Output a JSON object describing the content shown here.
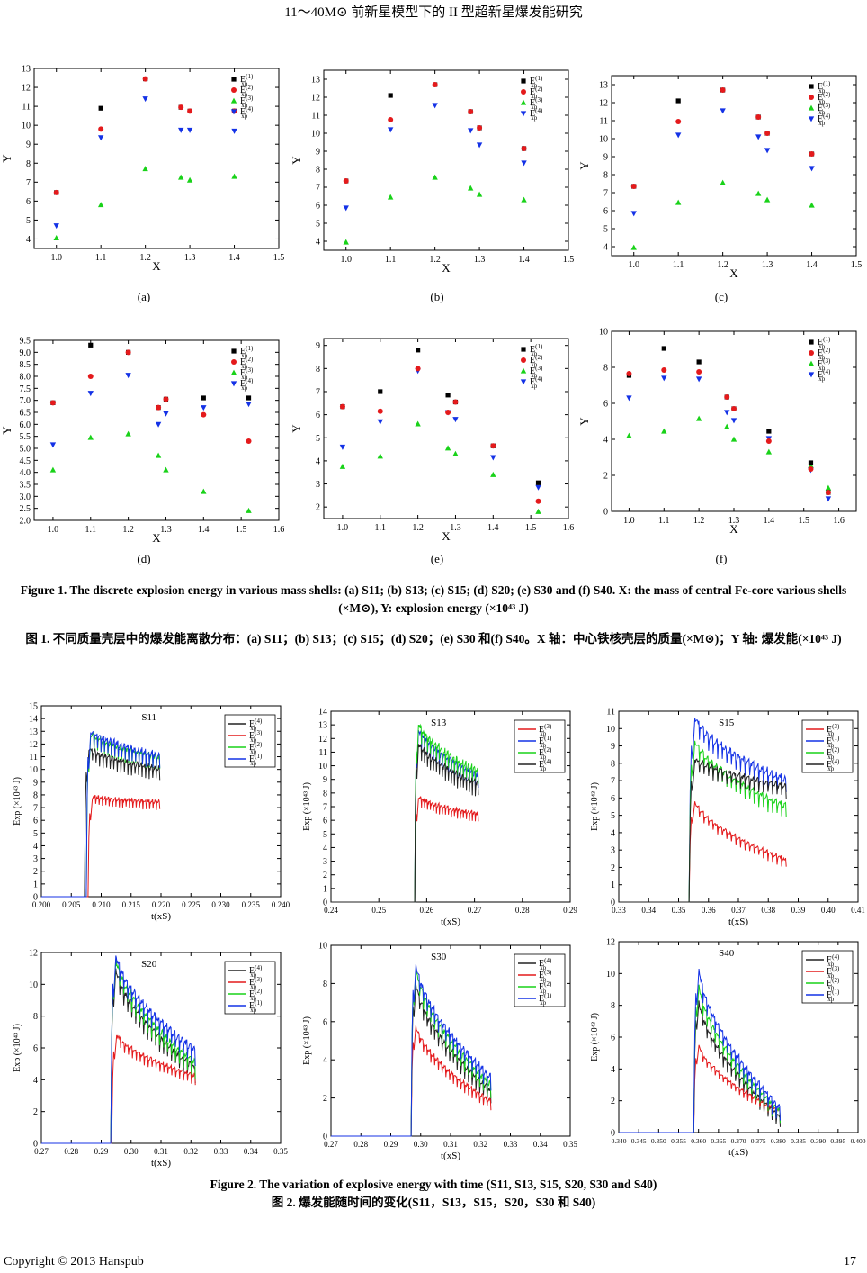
{
  "header": {
    "title": "11～40M⊙ 前新星模型下的 II 型超新星爆发能研究"
  },
  "figure1": {
    "sublabels": [
      "(a)",
      "(b)",
      "(c)",
      "(d)",
      "(e)",
      "(f)"
    ],
    "xlabel": "X",
    "ylabel": "Y",
    "legend": [
      "E(1)xp",
      "E(2)xp",
      "E(3)xp",
      "E(4)xp"
    ],
    "colors": [
      "#000000",
      "#e41a1c",
      "#19d219",
      "#1432e6"
    ],
    "caption_en": "Figure 1. The discrete explosion energy in various mass shells: (a) S11; (b) S13; (c) S15; (d) S20; (e) S30 and (f) S40. X: the mass of central Fe-core various shells (×M⊙), Y: explosion energy (×10⁴³ J)",
    "caption_zh": "图 1. 不同质量壳层中的爆发能离散分布：(a) S11；(b) S13；(c) S15；(d) S20；(e) S30 和(f) S40。X 轴：中心铁核壳层的质量(×M⊙)；Y 轴: 爆发能(×10⁴³ J)"
  },
  "figure2": {
    "xlabel": "t(xS)",
    "ylabel": "Exp (×10⁴³ J)",
    "caption_en": "Figure 2. The variation of explosive energy with time (S11, S13, S15, S20, S30 and S40)",
    "caption_zh": "图 2. 爆发能随时间的变化(S11，S13，S15，S20，S30 和 S40)"
  },
  "footer": {
    "copyright": "Copyright © 2013 Hanspub",
    "page": "17"
  },
  "chart_data": [
    {
      "type": "scatter",
      "title": "(a) S11",
      "xlabel": "X",
      "ylabel": "Y",
      "xlim": [
        0.95,
        1.5
      ],
      "ylim": [
        3.5,
        13
      ],
      "xticks": [
        "1.0",
        "1.1",
        "1.2",
        "1.3",
        "1.4",
        "1.5"
      ],
      "yticks": [
        "4",
        "5",
        "6",
        "7",
        "8",
        "9",
        "10",
        "11",
        "12",
        "13"
      ],
      "series": [
        {
          "name": "E(1)xp",
          "x": [
            1.0,
            1.1,
            1.2,
            1.28,
            1.3,
            1.4
          ],
          "y": [
            6.45,
            10.9,
            12.45,
            10.95,
            10.75,
            10.75
          ]
        },
        {
          "name": "E(2)xp",
          "x": [
            1.0,
            1.1,
            1.2,
            1.28,
            1.3,
            1.4
          ],
          "y": [
            6.45,
            9.8,
            12.45,
            10.95,
            10.75,
            10.75
          ]
        },
        {
          "name": "E(3)xp",
          "x": [
            1.0,
            1.1,
            1.2,
            1.28,
            1.3,
            1.4
          ],
          "y": [
            4.05,
            5.8,
            7.7,
            7.25,
            7.1,
            7.3
          ]
        },
        {
          "name": "E(4)xp",
          "x": [
            1.0,
            1.1,
            1.2,
            1.28,
            1.3,
            1.4
          ],
          "y": [
            4.7,
            9.35,
            11.4,
            9.75,
            9.75,
            9.7
          ]
        }
      ]
    },
    {
      "type": "scatter",
      "title": "(b) S13",
      "xlabel": "X",
      "ylabel": "Y",
      "xlim": [
        0.95,
        1.5
      ],
      "ylim": [
        3.5,
        13.5
      ],
      "xticks": [
        "1.0",
        "1.1",
        "1.2",
        "1.3",
        "1.4",
        "1.5"
      ],
      "yticks": [
        "4",
        "5",
        "6",
        "7",
        "8",
        "9",
        "10",
        "11",
        "12",
        "13"
      ],
      "series": [
        {
          "name": "E(1)xp",
          "x": [
            1.0,
            1.1,
            1.2,
            1.28,
            1.3,
            1.4
          ],
          "y": [
            7.35,
            12.1,
            12.7,
            11.2,
            10.3,
            9.15
          ]
        },
        {
          "name": "E(2)xp",
          "x": [
            1.0,
            1.1,
            1.2,
            1.28,
            1.3,
            1.4
          ],
          "y": [
            7.35,
            10.75,
            12.7,
            11.2,
            10.3,
            9.15
          ]
        },
        {
          "name": "E(3)xp",
          "x": [
            1.0,
            1.1,
            1.2,
            1.28,
            1.3,
            1.4
          ],
          "y": [
            3.95,
            6.45,
            7.55,
            6.95,
            6.6,
            6.3
          ]
        },
        {
          "name": "E(4)xp",
          "x": [
            1.0,
            1.1,
            1.2,
            1.28,
            1.3,
            1.4
          ],
          "y": [
            5.85,
            10.2,
            11.55,
            10.15,
            9.35,
            8.35
          ]
        }
      ]
    },
    {
      "type": "scatter",
      "title": "(c) S15",
      "xlabel": "X",
      "ylabel": "Y",
      "xlim": [
        0.95,
        1.5
      ],
      "ylim": [
        3.5,
        13.5
      ],
      "xticks": [
        "1.0",
        "1.1",
        "1.2",
        "1.3",
        "1.4",
        "1.5"
      ],
      "yticks": [
        "4",
        "5",
        "6",
        "7",
        "8",
        "9",
        "10",
        "11",
        "12",
        "13"
      ],
      "series": [
        {
          "name": "E(1)xp",
          "x": [
            1.0,
            1.1,
            1.2,
            1.28,
            1.3,
            1.4
          ],
          "y": [
            7.35,
            12.1,
            12.7,
            11.2,
            10.3,
            9.15
          ]
        },
        {
          "name": "E(2)xp",
          "x": [
            1.0,
            1.1,
            1.2,
            1.28,
            1.3,
            1.4
          ],
          "y": [
            7.35,
            10.95,
            12.7,
            11.2,
            10.3,
            9.15
          ]
        },
        {
          "name": "E(3)xp",
          "x": [
            1.0,
            1.1,
            1.2,
            1.28,
            1.3,
            1.4
          ],
          "y": [
            3.95,
            6.45,
            7.55,
            6.95,
            6.6,
            6.3
          ]
        },
        {
          "name": "E(4)xp",
          "x": [
            1.0,
            1.1,
            1.2,
            1.28,
            1.3,
            1.4
          ],
          "y": [
            5.85,
            10.2,
            11.55,
            10.1,
            9.35,
            8.35
          ]
        }
      ]
    },
    {
      "type": "scatter",
      "title": "(d) S20",
      "xlabel": "X",
      "ylabel": "Y",
      "xlim": [
        0.95,
        1.6
      ],
      "ylim": [
        2.0,
        9.5
      ],
      "xticks": [
        "1.0",
        "1.1",
        "1.2",
        "1.3",
        "1.4",
        "1.5",
        "1.6"
      ],
      "yticks": [
        "2.0",
        "2.5",
        "3.0",
        "3.5",
        "4.0",
        "4.5",
        "5.0",
        "5.5",
        "6.0",
        "6.5",
        "7.0",
        "7.5",
        "8.0",
        "8.5",
        "9.0",
        "9.5"
      ],
      "series": [
        {
          "name": "E(1)xp",
          "x": [
            1.0,
            1.1,
            1.2,
            1.28,
            1.3,
            1.4,
            1.52
          ],
          "y": [
            6.9,
            9.3,
            9.0,
            6.7,
            7.05,
            7.1,
            7.1
          ]
        },
        {
          "name": "E(2)xp",
          "x": [
            1.0,
            1.1,
            1.2,
            1.28,
            1.3,
            1.4,
            1.52
          ],
          "y": [
            6.9,
            8.0,
            9.0,
            6.7,
            7.05,
            6.4,
            5.3
          ]
        },
        {
          "name": "E(3)xp",
          "x": [
            1.0,
            1.1,
            1.2,
            1.28,
            1.3,
            1.4,
            1.52
          ],
          "y": [
            4.1,
            5.45,
            5.6,
            4.7,
            4.1,
            3.2,
            2.4
          ]
        },
        {
          "name": "E(4)xp",
          "x": [
            1.0,
            1.1,
            1.2,
            1.28,
            1.3,
            1.4,
            1.52
          ],
          "y": [
            5.15,
            7.3,
            8.05,
            6.0,
            6.45,
            6.7,
            6.85
          ]
        }
      ]
    },
    {
      "type": "scatter",
      "title": "(e) S30",
      "xlabel": "X",
      "ylabel": "Y",
      "xlim": [
        0.95,
        1.6
      ],
      "ylim": [
        1.5,
        9.3
      ],
      "xticks": [
        "1.0",
        "1.1",
        "1.2",
        "1.3",
        "1.4",
        "1.5",
        "1.6"
      ],
      "yticks": [
        "2",
        "3",
        "4",
        "5",
        "6",
        "7",
        "8",
        "9"
      ],
      "series": [
        {
          "name": "E(1)xp",
          "x": [
            1.0,
            1.1,
            1.2,
            1.28,
            1.3,
            1.4,
            1.52
          ],
          "y": [
            6.35,
            7.0,
            8.8,
            6.85,
            6.55,
            4.65,
            3.05
          ]
        },
        {
          "name": "E(2)xp",
          "x": [
            1.0,
            1.1,
            1.2,
            1.28,
            1.3,
            1.4,
            1.52
          ],
          "y": [
            6.35,
            6.15,
            8.0,
            6.1,
            6.55,
            4.65,
            2.25
          ]
        },
        {
          "name": "E(3)xp",
          "x": [
            1.0,
            1.1,
            1.2,
            1.28,
            1.3,
            1.4,
            1.52
          ],
          "y": [
            3.75,
            4.2,
            5.6,
            4.55,
            4.3,
            3.4,
            1.8
          ]
        },
        {
          "name": "E(4)xp",
          "x": [
            1.0,
            1.1,
            1.2,
            1.28,
            1.3,
            1.4,
            1.52
          ],
          "y": [
            4.6,
            5.7,
            7.9,
            6.1,
            5.8,
            4.15,
            2.85
          ]
        }
      ]
    },
    {
      "type": "scatter",
      "title": "(f) S40",
      "xlabel": "X",
      "ylabel": "Y",
      "xlim": [
        0.95,
        1.65
      ],
      "ylim": [
        0,
        10
      ],
      "xticks": [
        "1.0",
        "1.1",
        "1.2",
        "1.3",
        "1.4",
        "1.5",
        "1.6"
      ],
      "yticks": [
        "0",
        "2",
        "4",
        "6",
        "8",
        "10"
      ],
      "series": [
        {
          "name": "E(1)xp",
          "x": [
            1.0,
            1.1,
            1.2,
            1.28,
            1.3,
            1.4,
            1.52,
            1.57
          ],
          "y": [
            7.55,
            9.05,
            8.3,
            6.35,
            5.7,
            4.45,
            2.7,
            1.05
          ]
        },
        {
          "name": "E(2)xp",
          "x": [
            1.0,
            1.1,
            1.2,
            1.28,
            1.3,
            1.4,
            1.52,
            1.57
          ],
          "y": [
            7.65,
            7.85,
            7.75,
            6.35,
            5.7,
            3.9,
            2.35,
            1.05
          ]
        },
        {
          "name": "E(3)xp",
          "x": [
            1.0,
            1.1,
            1.2,
            1.28,
            1.3,
            1.4,
            1.52,
            1.57
          ],
          "y": [
            4.2,
            4.45,
            5.15,
            4.7,
            4.0,
            3.3,
            2.55,
            1.3
          ]
        },
        {
          "name": "E(4)xp",
          "x": [
            1.0,
            1.1,
            1.2,
            1.28,
            1.3,
            1.4,
            1.52,
            1.57
          ],
          "y": [
            6.3,
            7.4,
            7.35,
            5.5,
            5.05,
            4.05,
            2.3,
            0.7
          ]
        }
      ]
    },
    {
      "type": "line",
      "title": "S11",
      "xlabel": "t(xS)",
      "ylabel": "Exp (×10⁴³ J)",
      "xlim": [
        0.2,
        0.24
      ],
      "ylim": [
        0,
        15
      ],
      "xticks": [
        "0.200",
        "0.205",
        "0.210",
        "0.215",
        "0.220",
        "0.225",
        "0.230",
        "0.235",
        "0.240"
      ],
      "yticks": [
        "0",
        "1",
        "2",
        "3",
        "4",
        "5",
        "6",
        "7",
        "8",
        "9",
        "10",
        "11",
        "12",
        "13",
        "14",
        "15"
      ],
      "legend": [
        "E(4)xp",
        "E(3)xp",
        "E(2)xp",
        "E(1)xp"
      ],
      "series": [
        {
          "name": "E(4)xp",
          "onset": 0.2072,
          "peak": 11.5,
          "final": 9.8
        },
        {
          "name": "E(3)xp",
          "onset": 0.2078,
          "peak": 7.7,
          "final": 7.3
        },
        {
          "name": "E(2)xp",
          "onset": 0.2075,
          "peak": 12.6,
          "final": 10.7
        },
        {
          "name": "E(1)xp",
          "onset": 0.2075,
          "peak": 12.9,
          "final": 10.8
        }
      ],
      "xend": 0.2198
    },
    {
      "type": "line",
      "title": "S13",
      "xlabel": "t(xS)",
      "ylabel": "Exp (×10⁴³ J)",
      "xlim": [
        0.24,
        0.29
      ],
      "ylim": [
        0,
        14
      ],
      "xticks": [
        "0.24",
        "0.25",
        "0.26",
        "0.27",
        "0.28",
        "0.29"
      ],
      "yticks": [
        "0",
        "1",
        "2",
        "3",
        "4",
        "5",
        "6",
        "7",
        "8",
        "9",
        "10",
        "11",
        "12",
        "13",
        "14"
      ],
      "legend": [
        "E(3)xp",
        "E(1)xp",
        "E(2)xp",
        "E(4)xp"
      ],
      "series": [
        {
          "name": "E(3)xp",
          "onset": 0.2575,
          "peak": 7.6,
          "final": 6.3
        },
        {
          "name": "E(1)xp",
          "onset": 0.2575,
          "peak": 12.6,
          "final": 9.0
        },
        {
          "name": "E(2)xp",
          "onset": 0.2575,
          "peak": 13.0,
          "final": 9.3
        },
        {
          "name": "E(4)xp",
          "onset": 0.2575,
          "peak": 11.6,
          "final": 8.4
        }
      ],
      "xend": 0.2708
    },
    {
      "type": "line",
      "title": "S15",
      "xlabel": "t(xS)",
      "ylabel": "Exp (×10⁴³ J)",
      "xlim": [
        0.33,
        0.41
      ],
      "ylim": [
        0,
        11
      ],
      "xticks": [
        "0.33",
        "0.34",
        "0.35",
        "0.36",
        "0.37",
        "0.38",
        "0.39",
        "0.40",
        "0.41"
      ],
      "yticks": [
        "0",
        "1",
        "2",
        "3",
        "4",
        "5",
        "6",
        "7",
        "8",
        "9",
        "10",
        "11"
      ],
      "legend": [
        "E(3)xp",
        "E(1)xp",
        "E(2)xp",
        "E(4)xp"
      ],
      "series": [
        {
          "name": "E(3)xp",
          "onset": 0.3535,
          "peak": 5.8,
          "final": 2.3
        },
        {
          "name": "E(1)xp",
          "onset": 0.3535,
          "peak": 10.6,
          "final": 6.8
        },
        {
          "name": "E(2)xp",
          "onset": 0.3535,
          "peak": 9.3,
          "final": 5.3
        },
        {
          "name": "E(4)xp",
          "onset": 0.3535,
          "peak": 8.2,
          "final": 6.5
        }
      ],
      "xend": 0.386
    },
    {
      "type": "line",
      "title": "S20",
      "xlabel": "t(xS)",
      "ylabel": "Exp (×10⁴³ J)",
      "xlim": [
        0.27,
        0.35
      ],
      "ylim": [
        0,
        12
      ],
      "xticks": [
        "0.27",
        "0.28",
        "0.29",
        "0.30",
        "0.31",
        "0.32",
        "0.33",
        "0.34",
        "0.35"
      ],
      "yticks": [
        "0",
        "2",
        "4",
        "6",
        "8",
        "10",
        "12"
      ],
      "legend": [
        "E(4)xp",
        "E(3)xp",
        "E(2)xp",
        "E(1)xp"
      ],
      "series": [
        {
          "name": "E(4)xp",
          "onset": 0.2932,
          "peak": 11.0,
          "final": 4.5
        },
        {
          "name": "E(3)xp",
          "onset": 0.2935,
          "peak": 6.8,
          "final": 4.1
        },
        {
          "name": "E(2)xp",
          "onset": 0.2932,
          "peak": 11.6,
          "final": 4.8
        },
        {
          "name": "E(1)xp",
          "onset": 0.2932,
          "peak": 11.8,
          "final": 5.6
        }
      ],
      "xend": 0.3215
    },
    {
      "type": "line",
      "title": "S30",
      "xlabel": "t(xS)",
      "ylabel": "Exp (×10⁴³ J)",
      "xlim": [
        0.27,
        0.35
      ],
      "ylim": [
        0,
        10
      ],
      "xticks": [
        "0.27",
        "0.28",
        "0.29",
        "0.30",
        "0.31",
        "0.32",
        "0.33",
        "0.34",
        "0.35"
      ],
      "yticks": [
        "0",
        "2",
        "4",
        "6",
        "8",
        "10"
      ],
      "legend": [
        "E(4)xp",
        "E(3)xp",
        "E(2)xp",
        "E(1)xp"
      ],
      "series": [
        {
          "name": "E(4)xp",
          "onset": 0.2968,
          "peak": 8.0,
          "final": 2.2
        },
        {
          "name": "E(3)xp",
          "onset": 0.2968,
          "peak": 5.8,
          "final": 1.7
        },
        {
          "name": "E(2)xp",
          "onset": 0.2968,
          "peak": 8.8,
          "final": 2.5
        },
        {
          "name": "E(1)xp",
          "onset": 0.2968,
          "peak": 9.0,
          "final": 2.9
        }
      ],
      "xend": 0.3235
    },
    {
      "type": "line",
      "title": "S40",
      "xlabel": "t(xS)",
      "ylabel": "Exp (×10⁴³ J)",
      "xlim": [
        0.34,
        0.4
      ],
      "ylim": [
        0,
        12
      ],
      "xticks": [
        "0.340",
        "0.345",
        "0.350",
        "0.355",
        "0.360",
        "0.365",
        "0.370",
        "0.375",
        "0.380",
        "0.385",
        "0.390",
        "0.395",
        "0.400"
      ],
      "yticks": [
        "0",
        "2",
        "4",
        "6",
        "8",
        "10",
        "12"
      ],
      "legend": [
        "E(4)xp",
        "E(3)xp",
        "E(2)xp",
        "E(1)xp"
      ],
      "series": [
        {
          "name": "E(4)xp",
          "onset": 0.3588,
          "peak": 8.3,
          "final": 0.8
        },
        {
          "name": "E(3)xp",
          "onset": 0.3588,
          "peak": 5.5,
          "final": 1.2
        },
        {
          "name": "E(2)xp",
          "onset": 0.3588,
          "peak": 9.3,
          "final": 1.1
        },
        {
          "name": "E(1)xp",
          "onset": 0.3588,
          "peak": 10.3,
          "final": 1.3
        }
      ],
      "xend": 0.3805
    }
  ]
}
